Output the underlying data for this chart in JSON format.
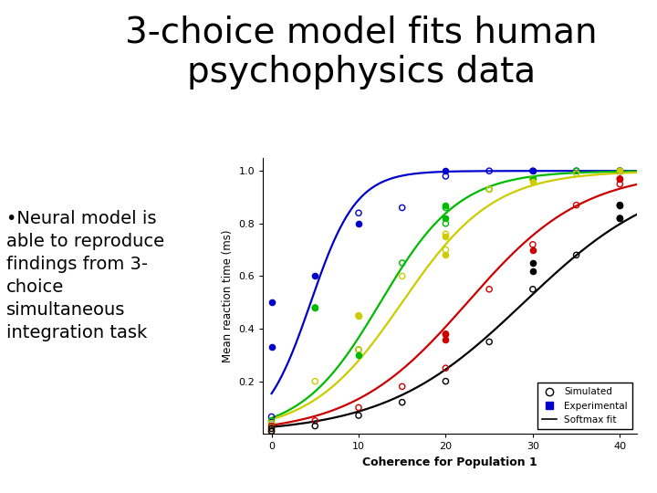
{
  "title": "3-choice model fits human\npsychophysics data",
  "xlabel": "Coherence for Population 1",
  "ylabel": "Mean reaction time (ms)",
  "xlim": [
    -1,
    42
  ],
  "ylim": [
    0,
    1.05
  ],
  "xticks": [
    0,
    10,
    20,
    30,
    40
  ],
  "yticks": [
    0.2,
    0.4,
    0.6,
    0.8,
    1.0
  ],
  "background_color": "#ffffff",
  "annotation_text": "•Neural model is\nable to reproduce\nfindings from 3-\nchoice\nsimultaneous\nintegration task",
  "title_fontsize": 28,
  "annot_fontsize": 14,
  "colors_map": {
    "blue": "#0000cc",
    "green": "#00bb00",
    "yellow": "#cccc00",
    "red": "#cc0000",
    "black": "#000000"
  },
  "curve_params": [
    [
      "blue",
      0.38,
      4.5
    ],
    [
      "green",
      0.22,
      12.5
    ],
    [
      "yellow",
      0.19,
      15.0
    ],
    [
      "red",
      0.15,
      22.5
    ],
    [
      "black",
      0.125,
      29.0
    ]
  ],
  "sim_data": {
    "blue": {
      "x": [
        0,
        0,
        10,
        15,
        20,
        25,
        30,
        35,
        40,
        40
      ],
      "y": [
        0.04,
        0.065,
        0.84,
        0.86,
        0.98,
        1.0,
        1.0,
        1.0,
        1.0,
        1.0
      ]
    },
    "green": {
      "x": [
        0,
        0,
        5,
        10,
        15,
        20,
        20,
        25,
        30,
        35,
        40
      ],
      "y": [
        0.03,
        0.05,
        0.48,
        0.32,
        0.65,
        0.8,
        0.86,
        0.93,
        0.97,
        1.0,
        1.0
      ]
    },
    "yellow": {
      "x": [
        0,
        0,
        5,
        10,
        10,
        15,
        20,
        20,
        25,
        30,
        35,
        40
      ],
      "y": [
        0.02,
        0.04,
        0.2,
        0.32,
        0.45,
        0.6,
        0.7,
        0.76,
        0.93,
        0.97,
        0.99,
        1.0
      ]
    },
    "red": {
      "x": [
        0,
        0,
        5,
        10,
        15,
        20,
        20,
        25,
        30,
        35,
        40,
        40
      ],
      "y": [
        0.01,
        0.03,
        0.05,
        0.1,
        0.18,
        0.25,
        0.38,
        0.55,
        0.72,
        0.87,
        0.95,
        0.97
      ]
    },
    "black": {
      "x": [
        0,
        0,
        5,
        10,
        15,
        20,
        25,
        30,
        35,
        40,
        40
      ],
      "y": [
        0.01,
        0.02,
        0.03,
        0.07,
        0.12,
        0.2,
        0.35,
        0.55,
        0.68,
        0.82,
        0.87
      ]
    }
  },
  "exp_data": {
    "blue": {
      "x": [
        0,
        0,
        5,
        10,
        20,
        30,
        40
      ],
      "y": [
        0.33,
        0.5,
        0.6,
        0.8,
        1.0,
        1.0,
        1.0
      ]
    },
    "green": {
      "x": [
        5,
        10,
        20,
        20,
        30,
        40
      ],
      "y": [
        0.48,
        0.3,
        0.82,
        0.87,
        0.97,
        1.0
      ]
    },
    "yellow": {
      "x": [
        10,
        20,
        20,
        30,
        40
      ],
      "y": [
        0.45,
        0.68,
        0.75,
        0.96,
        1.0
      ]
    },
    "red": {
      "x": [
        20,
        20,
        30,
        40
      ],
      "y": [
        0.36,
        0.38,
        0.7,
        0.97
      ]
    },
    "black": {
      "x": [
        30,
        30,
        40,
        40
      ],
      "y": [
        0.62,
        0.65,
        0.82,
        0.87
      ]
    }
  }
}
